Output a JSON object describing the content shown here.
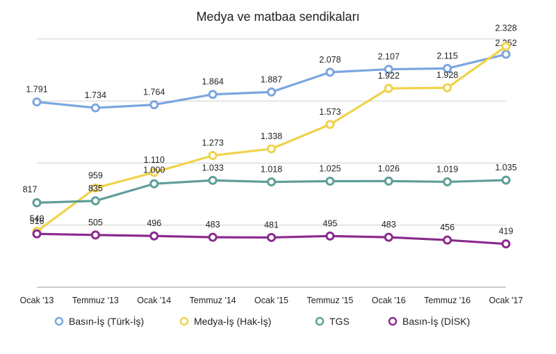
{
  "chart_data": {
    "type": "line",
    "title": "Medya ve matbaa sendikaları",
    "categories": [
      "Ocak '13",
      "Temmuz '13",
      "Ocak '14",
      "Temmuz '14",
      "Ocak '15",
      "Temmuz '15",
      "Ocak '16",
      "Temmuz '16",
      "Ocak '17"
    ],
    "ylim": [
      0,
      2400
    ],
    "grid": true,
    "legend_position": "bottom",
    "series": [
      {
        "name": "Basın-İş (Türk-İş)",
        "color": "#7aa6df",
        "values": [
          1791,
          1734,
          1764,
          1864,
          1887,
          2078,
          2107,
          2115,
          2252
        ],
        "labels": [
          "1.791",
          "1.734",
          "1.764",
          "1.864",
          "1.887",
          "2.078",
          "2.107",
          "2.115",
          "2.252"
        ]
      },
      {
        "name": "Medya-İş (Hak-İş)",
        "color": "#f0d24a",
        "values": [
          540,
          959,
          1110,
          1273,
          1338,
          1573,
          1922,
          1928,
          2328
        ],
        "labels": [
          "540",
          "959",
          "1.110",
          "1.273",
          "1.338",
          "1.573",
          "1.922",
          "1.928",
          "2.328"
        ]
      },
      {
        "name": "TGS",
        "color": "#5f9e98",
        "values": [
          817,
          835,
          1000,
          1033,
          1018,
          1025,
          1026,
          1019,
          1035
        ],
        "labels": [
          "817",
          "835",
          "1.000",
          "1.033",
          "1.018",
          "1.025",
          "1.026",
          "1.019",
          "1.035"
        ]
      },
      {
        "name": "Basın-İş (DİSK)",
        "color": "#8a2a8c",
        "values": [
          516,
          505,
          496,
          483,
          481,
          495,
          483,
          456,
          419
        ],
        "labels": [
          "516",
          "505",
          "496",
          "483",
          "481",
          "495",
          "483",
          "456",
          "419"
        ]
      }
    ]
  }
}
